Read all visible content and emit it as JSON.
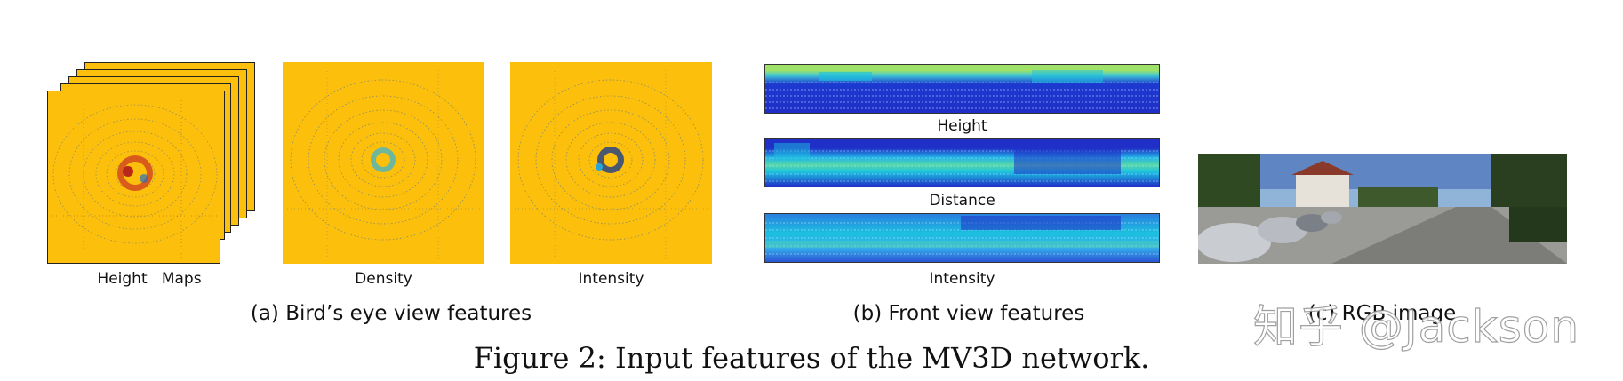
{
  "bev": {
    "subcaptions": {
      "height_maps": "Height   Maps",
      "density": "Density",
      "intensity": "Intensity"
    },
    "group_caption": "(a) Bird’s eye view features",
    "colors": {
      "background": "#fcbf0c",
      "scan_lines": "#3e6fa8",
      "hot_center": "#c0391b",
      "cool_center": "#2aa9d9"
    }
  },
  "front": {
    "subcaptions": {
      "height": "Height",
      "distance": "Distance",
      "intensity": "Intensity"
    },
    "group_caption": "(b) Front view features",
    "colors": {
      "deep": "#1f2fc7",
      "mid": "#1bc0e0",
      "top": "#9fe26a"
    }
  },
  "rgb": {
    "group_caption": "(c) RGB image"
  },
  "figure_caption": "Figure 2: Input features of the MV3D network.",
  "watermark": "知乎 @Jackson"
}
